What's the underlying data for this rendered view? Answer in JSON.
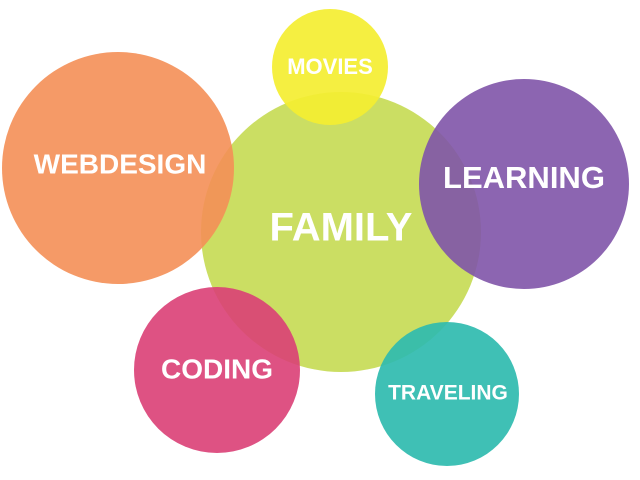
{
  "diagram": {
    "bubbles": [
      {
        "id": "family",
        "label": "FAMILY",
        "color": "#C5DA52"
      },
      {
        "id": "webdesign",
        "label": "WEBDESIGN",
        "color": "#F48F57"
      },
      {
        "id": "movies",
        "label": "MOVIES",
        "color": "#F4EE31"
      },
      {
        "id": "learning",
        "label": "LEARNING",
        "color": "#7F54A8"
      },
      {
        "id": "coding",
        "label": "CODING",
        "color": "#DA3F76"
      },
      {
        "id": "traveling",
        "label": "TRAVELING",
        "color": "#2FBBAF"
      }
    ]
  }
}
